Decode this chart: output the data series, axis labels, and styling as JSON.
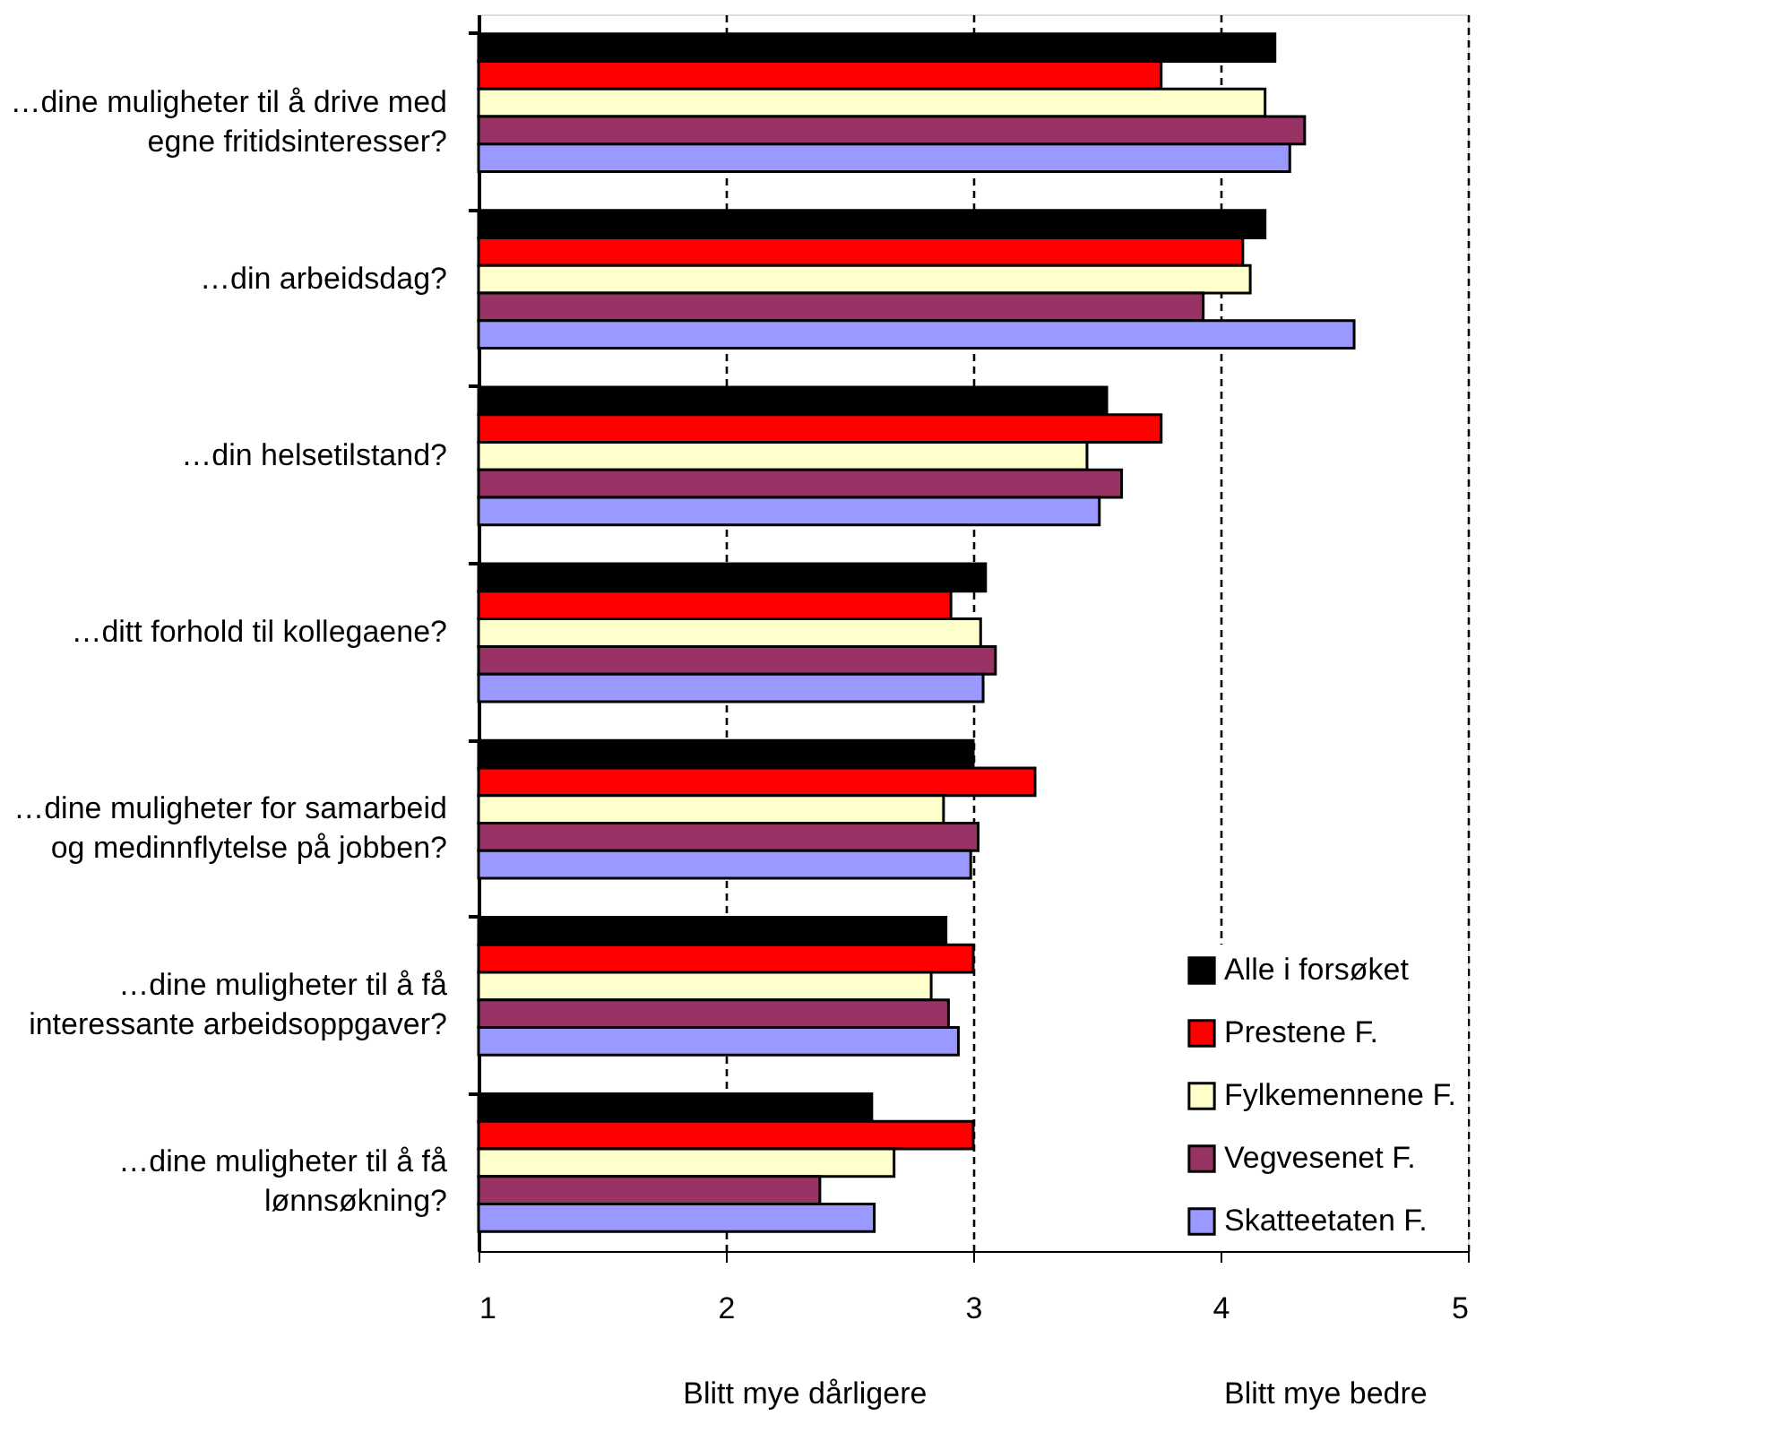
{
  "chart_data": {
    "type": "bar",
    "orientation": "horizontal",
    "categories": [
      "…dine muligheter til å drive med\negne fritidsinteresser?",
      "…din arbeidsdag?",
      "…din helsetilstand?",
      "…ditt forhold til kollegaene?",
      "…dine muligheter for samarbeid\nog medinnflytelse på jobben?",
      "…dine muligheter til å få\ninteressante arbeidsoppgaver?",
      "…dine muligheter til å få\nlønnsøkning?"
    ],
    "series": [
      {
        "name": "Alle i forsøket",
        "color": "#000000",
        "values": [
          4.22,
          4.18,
          3.54,
          3.05,
          3.0,
          2.89,
          2.59
        ]
      },
      {
        "name": "Prestene F.",
        "color": "#ff0000",
        "values": [
          3.76,
          4.09,
          3.76,
          2.91,
          3.25,
          3.0,
          3.0
        ]
      },
      {
        "name": "Fylkemennene F.",
        "color": "#ffffcc",
        "values": [
          4.18,
          4.12,
          3.46,
          3.03,
          2.88,
          2.83,
          2.68
        ]
      },
      {
        "name": "Vegvesenet F.",
        "color": "#993366",
        "values": [
          4.34,
          3.93,
          3.6,
          3.09,
          3.02,
          2.9,
          2.38
        ]
      },
      {
        "name": "Skatteetaten F.",
        "color": "#9999ff",
        "values": [
          4.28,
          4.54,
          3.51,
          3.04,
          2.99,
          2.94,
          2.6
        ]
      }
    ],
    "xlim": [
      1,
      5
    ],
    "xticks": [
      1,
      2,
      3,
      4,
      5
    ],
    "grid": "x",
    "legend": "bottom right",
    "annotations": [
      "Blitt mye dårligere",
      "Blitt mye bedre"
    ]
  }
}
